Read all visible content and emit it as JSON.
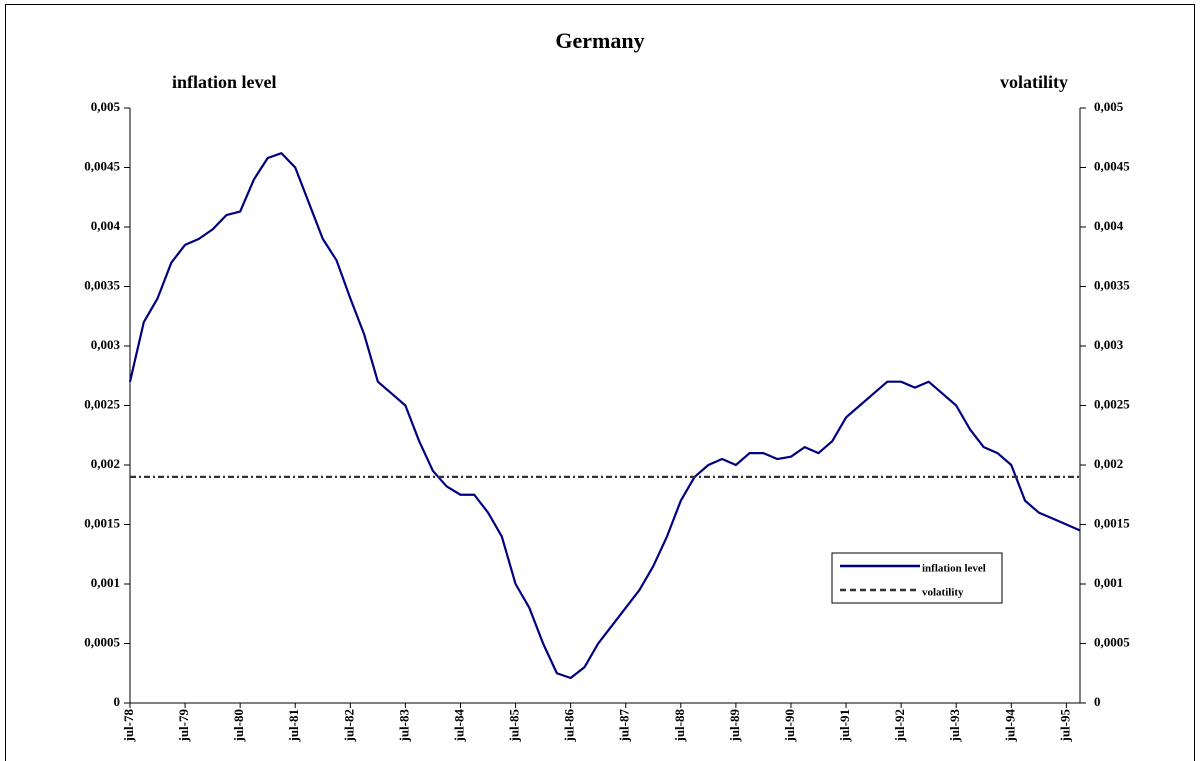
{
  "chart_data": {
    "type": "line",
    "title": "Germany",
    "y_label": "inflation level",
    "y2_label": "volatility",
    "categories": [
      "jul-78",
      null,
      null,
      null,
      "jul-79",
      null,
      null,
      null,
      "jul-80",
      null,
      null,
      null,
      "jul-81",
      null,
      null,
      null,
      "jul-82",
      null,
      null,
      null,
      "jul-83",
      null,
      null,
      null,
      "jul-84",
      null,
      null,
      null,
      "jul-85",
      null,
      null,
      null,
      "jul-86",
      null,
      null,
      null,
      "jul-87",
      null,
      null,
      null,
      "jul-88",
      null,
      null,
      null,
      "jul-89",
      null,
      null,
      null,
      "jul-90",
      null,
      null,
      null,
      "jul-91",
      null,
      null,
      null,
      "jul-92",
      null,
      null,
      null,
      "jul-93",
      null,
      null,
      null,
      "jul-94",
      null,
      null,
      null,
      "jul-95",
      null
    ],
    "series": [
      {
        "name": "inflation level",
        "color": "#000080",
        "style": "solid",
        "values": [
          0.0027,
          0.0032,
          0.0034,
          0.0037,
          0.00385,
          0.0039,
          0.00398,
          0.0041,
          0.00413,
          0.0044,
          0.00458,
          0.00462,
          0.0045,
          0.0042,
          0.0039,
          0.00372,
          0.0034,
          0.0031,
          0.0027,
          0.0026,
          0.0025,
          0.0022,
          0.00195,
          0.00182,
          0.00175,
          0.00175,
          0.0016,
          0.0014,
          0.001,
          0.0008,
          0.0005,
          0.00025,
          0.00021,
          0.0003,
          0.0005,
          0.00065,
          0.0008,
          0.00095,
          0.00115,
          0.0014,
          0.0017,
          0.0019,
          0.002,
          0.00205,
          0.002,
          0.0021,
          0.0021,
          0.00205,
          0.00207,
          0.00215,
          0.0021,
          0.0022,
          0.0024,
          0.0025,
          0.0026,
          0.0027,
          0.0027,
          0.00265,
          0.0027,
          0.0026,
          0.0025,
          0.0023,
          0.00215,
          0.0021,
          0.002,
          0.0017,
          0.0016,
          0.00155,
          0.0015,
          0.00145
        ]
      },
      {
        "name": "volatility",
        "color": "#333333",
        "style": "dashed",
        "axis": "y2",
        "values": [
          0.0019,
          0.0019,
          0.0019,
          0.0019,
          0.0019,
          0.0019,
          0.0019,
          0.0019,
          0.0019,
          0.0019,
          0.0019,
          0.0019,
          0.0019,
          0.0019,
          0.0019,
          0.0019,
          0.0019,
          0.0019,
          0.0019,
          0.0019,
          0.0019,
          0.0019,
          0.0019,
          0.0019,
          0.0019,
          0.0019,
          0.0019,
          0.0019,
          0.0019,
          0.0019,
          0.0019,
          0.0019,
          0.0019,
          0.0019,
          0.0019,
          0.0019,
          0.0019,
          0.0019,
          0.0019,
          0.0019,
          0.0019,
          0.0019,
          0.0019,
          0.0019,
          0.0019,
          0.0019,
          0.0019,
          0.0019,
          0.0019,
          0.0019,
          0.0019,
          0.0019,
          0.0019,
          0.0019,
          0.0019,
          0.0019,
          0.0019,
          0.0019,
          0.0019,
          0.0019,
          0.0019,
          0.0019,
          0.0019,
          0.0019,
          0.0019,
          0.0019,
          0.0019,
          0.0019,
          0.0019,
          0.0019
        ]
      }
    ],
    "ylim": [
      0,
      0.005
    ],
    "yticks": [
      0,
      {
        "value": 0.0005,
        "label": "0,0005"
      },
      {
        "value": 0.001,
        "label": "0,001"
      },
      {
        "value": 0.0015,
        "label": "0,0015"
      },
      {
        "value": 0.002,
        "label": "0,002"
      },
      {
        "value": 0.0025,
        "label": "0,0025"
      },
      {
        "value": 0.003,
        "label": "0,003"
      },
      {
        "value": 0.0035,
        "label": "0,0035"
      },
      {
        "value": 0.004,
        "label": "0,004"
      },
      {
        "value": 0.0045,
        "label": "0,0045"
      },
      {
        "value": 0.005,
        "label": "0,005"
      }
    ],
    "y2lim": [
      0,
      0.005
    ],
    "y2ticks": [
      0,
      {
        "value": 0.0005,
        "label": "0,0005"
      },
      {
        "value": 0.001,
        "label": "0,001"
      },
      {
        "value": 0.0015,
        "label": "0,0015"
      },
      {
        "value": 0.002,
        "label": "0,002"
      },
      {
        "value": 0.0025,
        "label": "0,0025"
      },
      {
        "value": 0.003,
        "label": "0,003"
      },
      {
        "value": 0.0035,
        "label": "0,0035"
      },
      {
        "value": 0.004,
        "label": "0,004"
      },
      {
        "value": 0.0045,
        "label": "0,0045"
      },
      {
        "value": 0.005,
        "label": "0,005"
      }
    ],
    "grid": false,
    "legend": "lower right"
  }
}
